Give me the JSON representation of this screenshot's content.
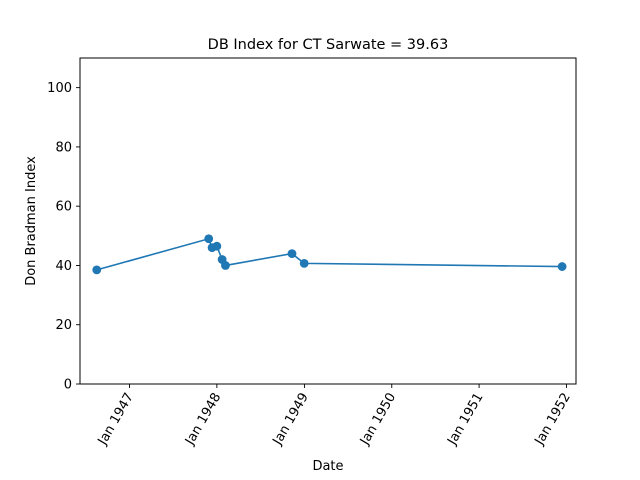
{
  "chart_data": {
    "type": "line",
    "title": "DB Index for CT Sarwate = 39.63",
    "xlabel": "Date",
    "ylabel": "Don Bradman Index",
    "xlim": [
      "1946-06-08",
      "1952-02-10"
    ],
    "ylim": [
      0,
      110
    ],
    "x_ticks": [
      {
        "date": "1947-01-01",
        "label": "Jan 1947"
      },
      {
        "date": "1948-01-01",
        "label": "Jan 1948"
      },
      {
        "date": "1949-01-01",
        "label": "Jan 1949"
      },
      {
        "date": "1950-01-01",
        "label": "Jan 1950"
      },
      {
        "date": "1951-01-01",
        "label": "Jan 1951"
      },
      {
        "date": "1952-01-01",
        "label": "Jan 1952"
      }
    ],
    "y_ticks": [
      0,
      20,
      40,
      60,
      80,
      100
    ],
    "grid": false,
    "line_color": "#1f77b4",
    "series": [
      {
        "points": [
          {
            "x": "1946-08-17",
            "y": 38.5
          },
          {
            "x": "1947-11-28",
            "y": 49.0
          },
          {
            "x": "1947-12-12",
            "y": 46.0
          },
          {
            "x": "1948-01-01",
            "y": 46.5
          },
          {
            "x": "1948-01-23",
            "y": 42.0
          },
          {
            "x": "1948-02-06",
            "y": 40.0
          },
          {
            "x": "1948-11-10",
            "y": 44.0
          },
          {
            "x": "1948-12-31",
            "y": 40.7
          },
          {
            "x": "1951-12-14",
            "y": 39.63
          }
        ]
      }
    ]
  }
}
